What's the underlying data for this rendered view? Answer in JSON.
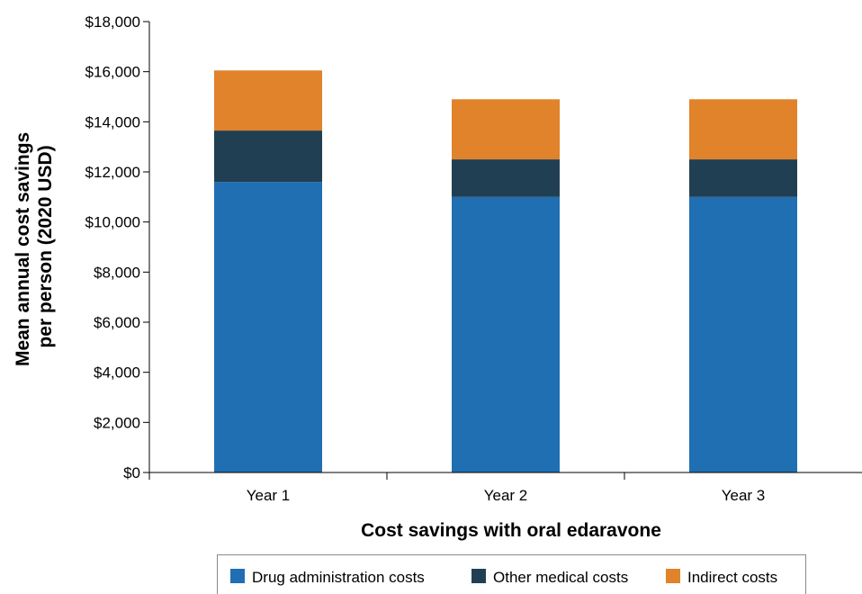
{
  "chart_data": {
    "type": "bar",
    "stacked": true,
    "categories": [
      "Year 1",
      "Year 2",
      "Year 3"
    ],
    "series": [
      {
        "name": "Drug administration costs",
        "values": [
          11600,
          11000,
          11000
        ],
        "color": "#1f6fb2"
      },
      {
        "name": "Other medical costs",
        "values": [
          2050,
          1500,
          1500
        ],
        "color": "#213f52"
      },
      {
        "name": "Indirect costs",
        "values": [
          2400,
          2400,
          2400
        ],
        "color": "#e0832a"
      }
    ],
    "xlabel": "Cost savings with oral edaravone",
    "ylabel_lines": [
      "Mean annual cost savings",
      "per person (2020 USD)"
    ],
    "ylim": [
      0,
      18000
    ],
    "y_ticks": [
      0,
      2000,
      4000,
      6000,
      8000,
      10000,
      12000,
      14000,
      16000,
      18000
    ],
    "y_tick_labels": [
      "$0",
      "$2,000",
      "$4,000",
      "$6,000",
      "$8,000",
      "$10,000",
      "$12,000",
      "$14,000",
      "$16,000",
      "$18,000"
    ],
    "grid": false,
    "legend_position": "bottom"
  }
}
